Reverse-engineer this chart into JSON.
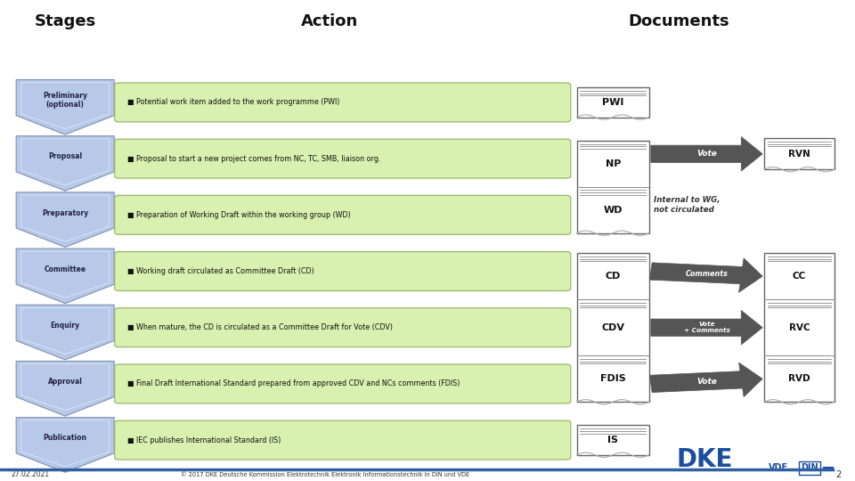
{
  "title_stages": "Stages",
  "title_action": "Action",
  "title_documents": "Documents",
  "background_color": "#ffffff",
  "stages": [
    {
      "label": "Preliminary\n(optional)"
    },
    {
      "label": "Proposal"
    },
    {
      "label": "Preparatory"
    },
    {
      "label": "Committee"
    },
    {
      "label": "Enquiry"
    },
    {
      "label": "Approval"
    },
    {
      "label": "Publication"
    }
  ],
  "actions": [
    {
      "text": "■ Potential work item added to the work programme (PWI)"
    },
    {
      "text": "■ Proposal to start a new project comes from NC, TC, SMB, liaison org."
    },
    {
      "text": "■ Preparation of Working Draft within the working group (WD)"
    },
    {
      "text": "■ Working draft circulated as Committee Draft (CD)"
    },
    {
      "text": "■ When mature, the CD is circulated as a Committee Draft for Vote (CDV)"
    },
    {
      "text": "■ Final Draft International Standard prepared from approved CDV and NCs comments (FDIS)"
    },
    {
      "text": "■ IEC publishes International Standard (IS)"
    }
  ],
  "arrow_color": "#555555",
  "stage_fill": "#b8c8e8",
  "stage_edge": "#8090b0",
  "stage_inner": "#dde8f8",
  "action_fill": "#d8f0b0",
  "action_edge": "#90b060",
  "footer_left": "27.02.2021",
  "footer_right": "© 2017 DKE Deutsche Kommission Elektrotechnik Elektronik Informationstechnik in DIN und VDE",
  "footer_page": "2",
  "internal_wg_line1": "Internal to WG,",
  "internal_wg_line2": "not circulated"
}
